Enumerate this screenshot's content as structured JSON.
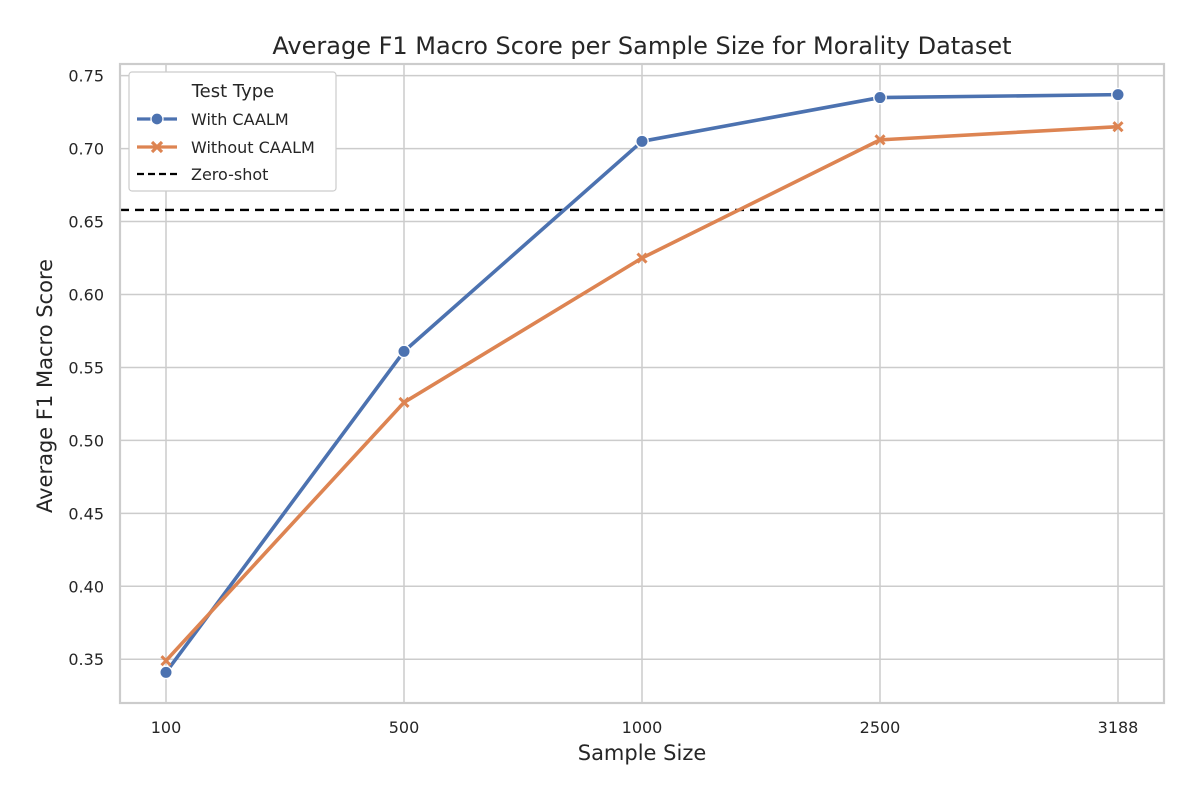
{
  "chart_data": {
    "type": "line",
    "title": "Average F1 Macro Score per Sample Size for Morality Dataset",
    "xlabel": "Sample Size",
    "ylabel": "Average F1 Macro Score",
    "categories": [
      "100",
      "500",
      "1000",
      "2500",
      "3188"
    ],
    "ylim": [
      0.32,
      0.758
    ],
    "yticks": [
      "0.35",
      "0.40",
      "0.45",
      "0.50",
      "0.55",
      "0.60",
      "0.65",
      "0.70",
      "0.75"
    ],
    "grid": true,
    "legend": {
      "title": "Test Type",
      "position": "top-left"
    },
    "series": [
      {
        "name": "With CAALM",
        "values": [
          0.341,
          0.561,
          0.705,
          0.735,
          0.737
        ],
        "color": "#4c72b0",
        "marker": "circle"
      },
      {
        "name": "Without CAALM",
        "values": [
          0.349,
          0.526,
          0.625,
          0.706,
          0.715
        ],
        "color": "#dd8452",
        "marker": "x"
      }
    ],
    "reference_lines": [
      {
        "name": "Zero-shot",
        "value": 0.658,
        "color": "#000000",
        "style": "dashed"
      }
    ]
  }
}
